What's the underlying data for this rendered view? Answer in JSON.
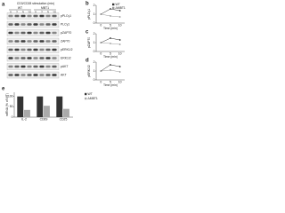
{
  "panel_a": {
    "label": "a",
    "header": "CD3/CD28 stimulation (min)",
    "groups": [
      "WT",
      "MBT1"
    ],
    "lanes": [
      "0",
      "2",
      "5",
      "10",
      "0",
      "2",
      "5",
      "10"
    ],
    "blots": [
      "pPLCγ1",
      "PLCγ1",
      "pZAP70",
      "ZAP70",
      "pERK1/2",
      "ERK1/2",
      "pAKT",
      "AKT"
    ]
  },
  "charts": [
    {
      "label": "b",
      "type": "line",
      "ylabel": "pPLCγ1",
      "xlabel": "Time (min)",
      "categories": [
        "0",
        "5",
        "10"
      ],
      "series": [
        {
          "name": "WT",
          "color": "#333333",
          "values": [
            1,
            1.6,
            1.4
          ]
        },
        {
          "name": "ΔMBT1",
          "color": "#999999",
          "values": [
            1,
            0.8,
            0.7
          ]
        }
      ],
      "ylim": [
        0,
        2
      ],
      "yticks": [
        0,
        1,
        2
      ],
      "legend": true
    },
    {
      "label": "c",
      "type": "line",
      "ylabel": "pZAP70",
      "xlabel": "Time (min)",
      "categories": [
        "0",
        "5",
        "10"
      ],
      "series": [
        {
          "name": "WT",
          "color": "#333333",
          "values": [
            1,
            1.5,
            1.3
          ]
        },
        {
          "name": "ΔMBT1",
          "color": "#999999",
          "values": [
            1,
            0.9,
            0.8
          ]
        }
      ],
      "ylim": [
        0,
        2
      ],
      "yticks": [
        0,
        1,
        2
      ],
      "legend": false
    },
    {
      "label": "d",
      "type": "line",
      "ylabel": "pERK1/2",
      "xlabel": "Time (min)",
      "categories": [
        "0",
        "5",
        "10"
      ],
      "series": [
        {
          "name": "WT",
          "color": "#333333",
          "values": [
            1,
            1.7,
            1.5
          ]
        },
        {
          "name": "ΔMBT1",
          "color": "#999999",
          "values": [
            1,
            1.1,
            0.9
          ]
        }
      ],
      "ylim": [
        0,
        2
      ],
      "yticks": [
        0,
        1,
        2
      ],
      "legend": false
    },
    {
      "label": "e",
      "type": "bar",
      "ylabel": "mRNA (% of WT)",
      "categories": [
        "IL-2",
        "CD69",
        "CD25"
      ],
      "series": [
        {
          "name": "WT",
          "color": "#333333",
          "values": [
            100,
            100,
            100
          ]
        },
        {
          "name": "ΔMBT1",
          "color": "#aaaaaa",
          "values": [
            35,
            55,
            40
          ]
        }
      ],
      "ylim": [
        0,
        120
      ],
      "yticks": [
        0,
        50,
        100
      ],
      "legend": true
    }
  ]
}
